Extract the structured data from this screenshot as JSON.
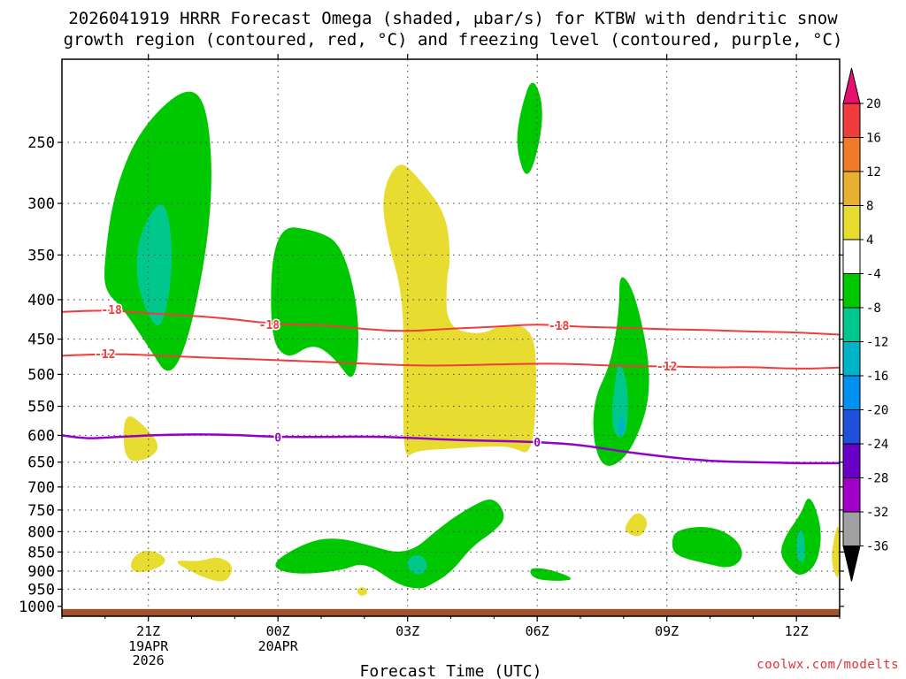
{
  "title_line1": "2026041919 HRRR Forecast Omega (shaded, μbar/s) for KTBW with dendritic snow",
  "title_line2": "growth region (contoured, red, °C) and freezing level (contoured, purple, °C)",
  "credit": "coolwx.com/modelts",
  "chart_data": {
    "type": "heatmap",
    "xlabel": "Forecast Time (UTC)",
    "ylabel": "",
    "x_tick_labels": [
      {
        "label": "21Z",
        "sub": [
          "19APR",
          "2026"
        ],
        "hour": 2
      },
      {
        "label": "00Z",
        "sub": [
          "20APR"
        ],
        "hour": 5
      },
      {
        "label": "03Z",
        "sub": [],
        "hour": 8
      },
      {
        "label": "06Z",
        "sub": [],
        "hour": 11
      },
      {
        "label": "09Z",
        "sub": [],
        "hour": 14
      },
      {
        "label": "12Z",
        "sub": [],
        "hour": 17
      }
    ],
    "xlim_hours": [
      0,
      18
    ],
    "y_ticks_hPa": [
      250,
      300,
      350,
      400,
      450,
      500,
      550,
      600,
      650,
      700,
      750,
      800,
      850,
      900,
      950,
      1000
    ],
    "ylim_hPa": [
      195,
      1030
    ],
    "grid": true,
    "colorbar": {
      "labels": [
        "20",
        "16",
        "12",
        "8",
        "4",
        "-4",
        "-8",
        "-12",
        "-16",
        "-20",
        "-24",
        "-28",
        "-32",
        "-36"
      ],
      "colors": [
        "#e8106e",
        "#f03c3c",
        "#f07a28",
        "#e8b030",
        "#e8dc30",
        "#ffffff",
        "#00c800",
        "#00c88c",
        "#00b4c8",
        "#0090f0",
        "#1e50dc",
        "#6a00c8",
        "#a000c8",
        "#a0a0a0",
        "#000000"
      ]
    },
    "omega_areas": [
      {
        "color": "#00c800",
        "value": -4,
        "pts": [
          [
            0.97,
            360
          ],
          [
            1.2,
            290
          ],
          [
            1.8,
            240
          ],
          [
            2.9,
            210
          ],
          [
            3.4,
            225
          ],
          [
            3.5,
            305
          ],
          [
            3.0,
            440
          ],
          [
            2.5,
            510
          ],
          [
            2.0,
            460
          ],
          [
            1.4,
            410
          ],
          [
            1.0,
            390
          ]
        ]
      },
      {
        "color": "#00c88c",
        "value": -8,
        "pts": [
          [
            1.8,
            325
          ],
          [
            2.4,
            290
          ],
          [
            2.6,
            360
          ],
          [
            2.3,
            445
          ],
          [
            1.9,
            410
          ],
          [
            1.7,
            370
          ]
        ]
      },
      {
        "color": "#00c800",
        "value": -4,
        "pts": [
          [
            10.6,
            228
          ],
          [
            10.9,
            203
          ],
          [
            11.2,
            230
          ],
          [
            10.8,
            285
          ],
          [
            10.5,
            255
          ]
        ]
      },
      {
        "color": "#00c800",
        "value": -4,
        "pts": [
          [
            4.9,
            320
          ],
          [
            5.9,
            325
          ],
          [
            6.5,
            340
          ],
          [
            6.9,
            420
          ],
          [
            6.8,
            520
          ],
          [
            6.3,
            475
          ],
          [
            5.8,
            455
          ],
          [
            5.2,
            480
          ],
          [
            4.8,
            445
          ]
        ]
      },
      {
        "color": "#e8dc30",
        "value": 4,
        "pts": [
          [
            7.4,
            290
          ],
          [
            7.8,
            262
          ],
          [
            8.3,
            280
          ],
          [
            8.9,
            310
          ],
          [
            9.0,
            355
          ],
          [
            8.9,
            375
          ],
          [
            8.9,
            435
          ],
          [
            9.7,
            445
          ],
          [
            10.2,
            430
          ],
          [
            10.9,
            435
          ],
          [
            11.0,
            500
          ],
          [
            10.9,
            640
          ],
          [
            10.4,
            620
          ],
          [
            9.8,
            620
          ],
          [
            8.9,
            625
          ],
          [
            8.2,
            628
          ],
          [
            7.9,
            645
          ],
          [
            7.9,
            500
          ],
          [
            7.9,
            395
          ],
          [
            7.5,
            330
          ]
        ]
      },
      {
        "color": "#00c800",
        "value": -4,
        "pts": [
          [
            12.9,
            365
          ],
          [
            13.3,
            395
          ],
          [
            13.7,
            520
          ],
          [
            13.2,
            630
          ],
          [
            12.6,
            668
          ],
          [
            12.3,
            620
          ],
          [
            12.3,
            540
          ],
          [
            12.7,
            485
          ],
          [
            12.9,
            415
          ]
        ]
      },
      {
        "color": "#00c88c",
        "value": -8,
        "pts": [
          [
            12.9,
            478
          ],
          [
            13.1,
            515
          ],
          [
            13.1,
            590
          ],
          [
            12.9,
            610
          ],
          [
            12.7,
            580
          ],
          [
            12.8,
            510
          ]
        ]
      },
      {
        "color": "#00b4c8",
        "value": -12,
        "pts": [
          [
            12.95,
            560
          ],
          [
            13.05,
            585
          ],
          [
            12.95,
            605
          ],
          [
            12.85,
            585
          ]
        ]
      },
      {
        "color": "#e8dc30",
        "value": 4,
        "pts": [
          [
            1.5,
            560
          ],
          [
            1.9,
            582
          ],
          [
            2.3,
            620
          ],
          [
            2.0,
            645
          ],
          [
            1.5,
            650
          ],
          [
            1.4,
            600
          ]
        ]
      },
      {
        "color": "#e8dc30",
        "value": 4,
        "pts": [
          [
            1.6,
            865
          ],
          [
            2.0,
            840
          ],
          [
            2.5,
            870
          ],
          [
            2.1,
            900
          ],
          [
            1.6,
            905
          ]
        ]
      },
      {
        "color": "#e8dc30",
        "value": 4,
        "pts": [
          [
            3.2,
            875
          ],
          [
            3.6,
            860
          ],
          [
            4.0,
            885
          ],
          [
            3.8,
            935
          ],
          [
            3.2,
            915
          ],
          [
            2.5,
            870
          ]
        ]
      },
      {
        "color": "#00c800",
        "value": -4,
        "pts": [
          [
            5.0,
            865
          ],
          [
            5.8,
            820
          ],
          [
            6.4,
            815
          ],
          [
            7.0,
            830
          ],
          [
            8.0,
            860
          ],
          [
            8.8,
            785
          ],
          [
            9.5,
            740
          ],
          [
            10.0,
            720
          ],
          [
            10.3,
            765
          ],
          [
            10.0,
            800
          ],
          [
            9.5,
            835
          ],
          [
            9.0,
            905
          ],
          [
            8.5,
            940
          ],
          [
            8.3,
            950
          ],
          [
            7.8,
            940
          ],
          [
            7.0,
            875
          ],
          [
            6.5,
            898
          ],
          [
            5.5,
            910
          ],
          [
            4.9,
            895
          ]
        ]
      },
      {
        "color": "#00c88c",
        "value": -8,
        "pts": [
          [
            8.0,
            865
          ],
          [
            8.3,
            855
          ],
          [
            8.5,
            885
          ],
          [
            8.3,
            915
          ],
          [
            8.0,
            895
          ]
        ]
      },
      {
        "color": "#e8dc30",
        "value": 4,
        "pts": [
          [
            6.8,
            950
          ],
          [
            7.0,
            942
          ],
          [
            7.1,
            962
          ],
          [
            6.9,
            972
          ]
        ]
      },
      {
        "color": "#00c800",
        "value": -4,
        "pts": [
          [
            10.8,
            890
          ],
          [
            11.3,
            895
          ],
          [
            11.9,
            922
          ],
          [
            11.5,
            928
          ],
          [
            10.9,
            922
          ]
        ]
      },
      {
        "color": "#e8dc30",
        "value": 4,
        "pts": [
          [
            13.0,
            790
          ],
          [
            13.3,
            750
          ],
          [
            13.6,
            775
          ],
          [
            13.4,
            815
          ],
          [
            13.1,
            805
          ]
        ]
      },
      {
        "color": "#00c800",
        "value": -4,
        "pts": [
          [
            14.2,
            795
          ],
          [
            15.0,
            785
          ],
          [
            15.6,
            815
          ],
          [
            15.8,
            860
          ],
          [
            15.5,
            895
          ],
          [
            14.9,
            880
          ],
          [
            14.2,
            860
          ],
          [
            14.1,
            830
          ]
        ]
      },
      {
        "color": "#00c800",
        "value": -4,
        "pts": [
          [
            16.8,
            800
          ],
          [
            17.1,
            760
          ],
          [
            17.3,
            710
          ],
          [
            17.6,
            790
          ],
          [
            17.5,
            880
          ],
          [
            17.1,
            918
          ],
          [
            16.8,
            890
          ],
          [
            16.6,
            850
          ]
        ]
      },
      {
        "color": "#00c88c",
        "value": -8,
        "pts": [
          [
            17.0,
            815
          ],
          [
            17.1,
            790
          ],
          [
            17.2,
            820
          ],
          [
            17.2,
            880
          ],
          [
            17.0,
            870
          ]
        ]
      },
      {
        "color": "#e8dc30",
        "value": 4,
        "pts": [
          [
            17.8,
            850
          ],
          [
            18.0,
            760
          ],
          [
            18.0,
            930
          ],
          [
            17.85,
            900
          ]
        ]
      }
    ],
    "contours": [
      {
        "name": "-18",
        "color": "#f03c3c",
        "width": 2,
        "pts": [
          [
            0,
            415
          ],
          [
            1.0,
            412
          ],
          [
            2.0,
            417
          ],
          [
            3.5,
            421
          ],
          [
            5.0,
            431
          ],
          [
            6.0,
            431
          ],
          [
            7.0,
            437
          ],
          [
            8.0,
            440
          ],
          [
            9.0,
            436
          ],
          [
            10.0,
            434
          ],
          [
            11.0,
            430
          ],
          [
            12.0,
            434
          ],
          [
            13.0,
            435
          ],
          [
            14.0,
            437
          ],
          [
            15.0,
            438
          ],
          [
            16.0,
            440
          ],
          [
            17.0,
            441
          ],
          [
            18.0,
            444
          ]
        ],
        "labels": [
          [
            1.15,
            412
          ],
          [
            4.8,
            431
          ],
          [
            11.5,
            432
          ]
        ]
      },
      {
        "name": "-12",
        "color": "#f03c3c",
        "width": 2,
        "pts": [
          [
            0,
            473
          ],
          [
            1.0,
            470
          ],
          [
            2.0,
            472
          ],
          [
            3.5,
            476
          ],
          [
            5.0,
            479
          ],
          [
            7.0,
            484
          ],
          [
            8.0,
            487
          ],
          [
            9.0,
            487
          ],
          [
            11.0,
            484
          ],
          [
            12.0,
            485
          ],
          [
            13.0,
            488
          ],
          [
            14.0,
            488
          ],
          [
            15.0,
            490
          ],
          [
            16.0,
            489
          ],
          [
            17.0,
            492
          ],
          [
            18.0,
            490
          ]
        ],
        "labels": [
          [
            1.0,
            470
          ],
          [
            14.0,
            488
          ]
        ]
      },
      {
        "name": "0",
        "color": "#9400c8",
        "width": 2.5,
        "pts": [
          [
            0,
            600
          ],
          [
            0.5,
            606
          ],
          [
            1.0,
            604
          ],
          [
            2.0,
            600
          ],
          [
            3.0,
            598
          ],
          [
            4.0,
            599
          ],
          [
            5.0,
            603
          ],
          [
            6.0,
            603
          ],
          [
            7.0,
            602
          ],
          [
            8.0,
            604
          ],
          [
            9.0,
            608
          ],
          [
            10.0,
            610
          ],
          [
            11.0,
            612
          ],
          [
            12.0,
            617
          ],
          [
            13.0,
            630
          ],
          [
            14.0,
            640
          ],
          [
            15.0,
            648
          ],
          [
            16.0,
            650
          ],
          [
            17.0,
            652
          ],
          [
            18.0,
            652
          ]
        ],
        "labels": [
          [
            5.0,
            603
          ],
          [
            11.0,
            612
          ]
        ]
      }
    ]
  }
}
